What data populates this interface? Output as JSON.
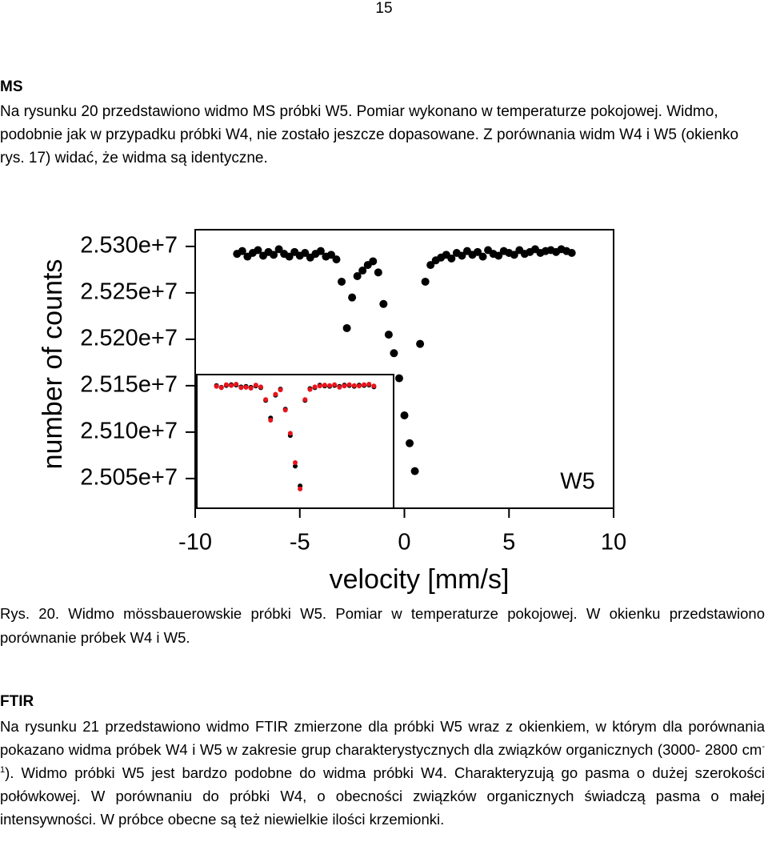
{
  "page_number": "15",
  "ms_section": {
    "heading": "MS",
    "paragraph": "Na rysunku 20 przedstawiono widmo MS próbki W5. Pomiar wykonano w temperaturze pokojowej. Widmo, podobnie jak w przypadku próbki W4, nie zostało jeszcze dopasowane. Z porównania widm W4 i W5 (okienko rys. 17) widać, że widma są identyczne."
  },
  "chart_data": {
    "type": "scatter",
    "y_label": "number of counts",
    "x_label": "velocity [mm/s]",
    "annotation": "W5",
    "xlim": [
      -10,
      10
    ],
    "ylim": [
      25018000,
      25318000
    ],
    "xticks": [
      -10,
      -5,
      0,
      5,
      10
    ],
    "yticks": [
      {
        "value": 25050000,
        "label": "2.505e+7"
      },
      {
        "value": 25100000,
        "label": "2.510e+7"
      },
      {
        "value": 25150000,
        "label": "2.515e+7"
      },
      {
        "value": 25200000,
        "label": "2.520e+7"
      },
      {
        "value": 25250000,
        "label": "2.525e+7"
      },
      {
        "value": 25300000,
        "label": "2.530e+7"
      }
    ],
    "x": [
      -8,
      -7.75,
      -7.5,
      -7.25,
      -7,
      -6.75,
      -6.5,
      -6.25,
      -6,
      -5.75,
      -5.5,
      -5.25,
      -5,
      -4.75,
      -4.5,
      -4.25,
      -4,
      -3.75,
      -3.5,
      -3.25,
      -3,
      -2.75,
      -2.5,
      -2.25,
      -2,
      -1.75,
      -1.5,
      -1.25,
      -1,
      -0.75,
      -0.5,
      -0.25,
      0,
      0.25,
      0.5,
      0.75,
      1,
      1.25,
      1.5,
      1.75,
      2,
      2.25,
      2.5,
      2.75,
      3,
      3.25,
      3.5,
      3.75,
      4,
      4.25,
      4.5,
      4.75,
      5,
      5.25,
      5.5,
      5.75,
      6,
      6.25,
      6.5,
      6.75,
      7,
      7.25,
      7.5,
      7.75,
      8
    ],
    "series": [
      {
        "color": "#000000",
        "values": [
          25292000,
          25295000,
          25289000,
          25293000,
          25296000,
          25290000,
          25294000,
          25291000,
          25297000,
          25292000,
          25289000,
          25294000,
          25290000,
          25293000,
          25288000,
          25292000,
          25295000,
          25289000,
          25291000,
          25286000,
          25262000,
          25212000,
          25245000,
          25268000,
          25274000,
          25280000,
          25284000,
          25272000,
          25238000,
          25205000,
          25185000,
          25158000,
          25118000,
          25088000,
          25058000,
          25195000,
          25262000,
          25280000,
          25285000,
          25288000,
          25291000,
          25287000,
          25293000,
          25290000,
          25295000,
          25291000,
          25294000,
          25289000,
          25296000,
          25292000,
          25290000,
          25295000,
          25293000,
          25291000,
          25296000,
          25292000,
          25294000,
          25297000,
          25293000,
          25295000,
          25296000,
          25294000,
          25297000,
          25295000,
          25293000
        ]
      }
    ],
    "inset": {
      "xlim": [
        -10,
        10
      ],
      "ylim": [
        25014000,
        25319000
      ],
      "x": [
        -8,
        -7.5,
        -7,
        -6.5,
        -6,
        -5.5,
        -5,
        -4.5,
        -4,
        -3.5,
        -3,
        -2.5,
        -2,
        -1.5,
        -1,
        -0.5,
        0,
        0.5,
        1,
        1.5,
        2,
        2.5,
        3,
        3.5,
        4,
        4.5,
        5,
        5.5,
        6,
        6.5,
        7,
        7.5,
        8
      ],
      "series": [
        {
          "color": "#000000",
          "values": [
            25294000,
            25290000,
            25294000,
            25296000,
            25295000,
            25291000,
            25292000,
            25290000,
            25293000,
            25289000,
            25260000,
            25220000,
            25272000,
            25286000,
            25240000,
            25180000,
            25110000,
            25065000,
            25260000,
            25287000,
            25289000,
            25295000,
            25293000,
            25292000,
            25294000,
            25292000,
            25295000,
            25294000,
            25292000,
            25295000,
            25294000,
            25295000,
            25291000
          ]
        },
        {
          "color": "#e8141c",
          "values": [
            25292000,
            25289000,
            25296000,
            25294000,
            25297000,
            25289000,
            25290000,
            25288000,
            25295000,
            25291000,
            25262000,
            25215000,
            25274000,
            25284000,
            25238000,
            25185000,
            25118000,
            25058000,
            25262000,
            25285000,
            25291000,
            25293000,
            25295000,
            25294000,
            25296000,
            25290000,
            25293000,
            25296000,
            25294000,
            25293000,
            25296000,
            25297000,
            25293000
          ]
        }
      ]
    }
  },
  "figure_caption": "Rys. 20. Widmo mössbauerowskie  próbki W5. Pomiar w temperaturze pokojowej. W okienku przedstawiono porównanie próbek W4 i W5.",
  "ftir_section": {
    "heading": "FTIR",
    "paragraph_parts": [
      "Na rysunku 21 przedstawiono widmo FTIR zmierzone dla próbki W5 wraz z okienkiem, w którym dla porównania pokazano widma próbek W4 i W5 w zakresie grup charakterystycznych dla związków organicznych (3000- 2800 cm",
      "-1",
      "). Widmo próbki W5 jest bardzo podobne do widma próbki W4. Charakteryzują go pasma o dużej szerokości połówkowej.  W porównaniu do próbki W4, o obecności związków organicznych świadczą pasma o małej intensywności. W próbce obecne są też niewielkie ilości krzemionki."
    ]
  }
}
